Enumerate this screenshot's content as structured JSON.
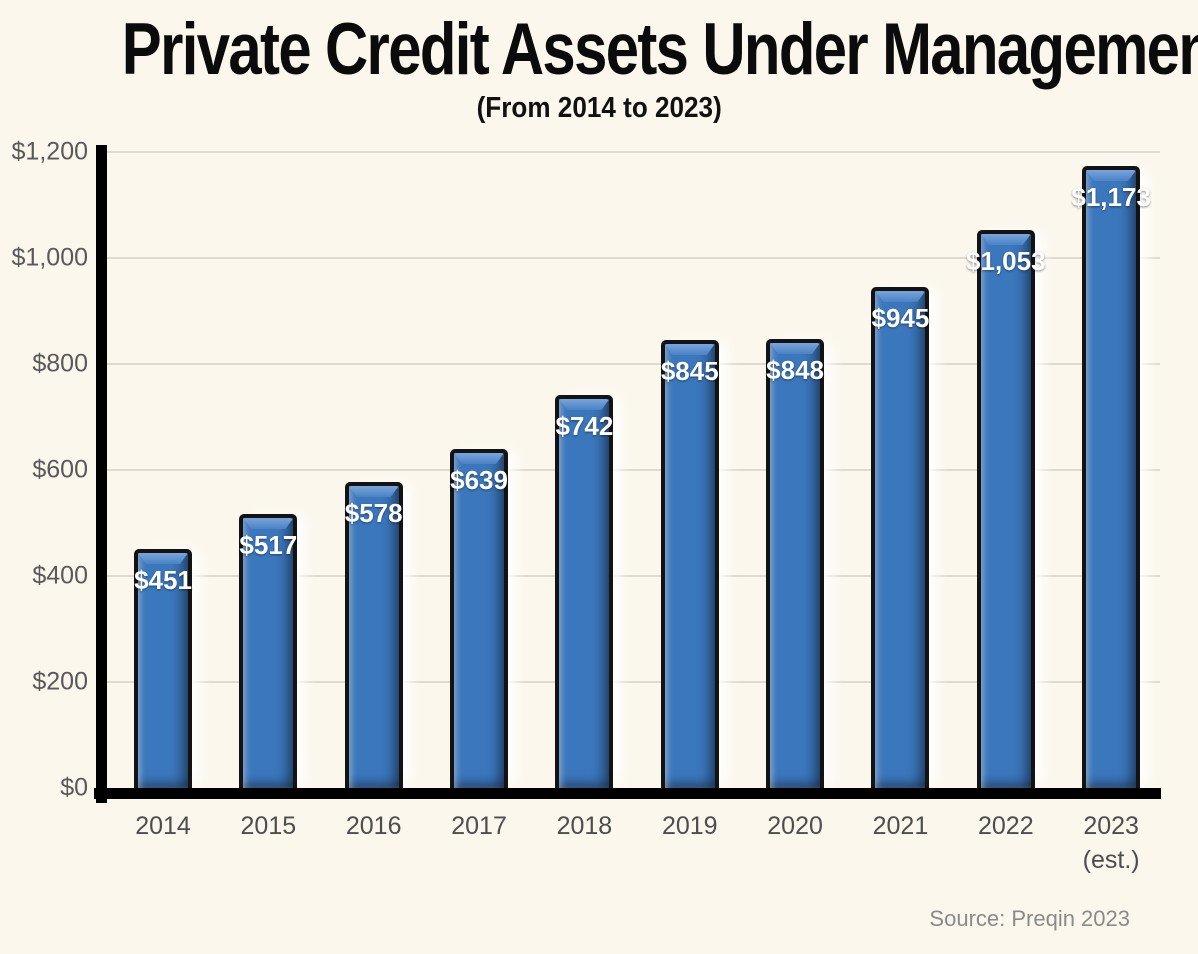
{
  "header": {
    "title": "Private Credit Assets Under Management",
    "subtitle": "(From 2014 to 2023)"
  },
  "footer": {
    "source": "Source: Preqin  2023"
  },
  "chart_data": {
    "type": "bar",
    "title": "Private Credit Assets Under Management",
    "subtitle": "(From 2014 to 2023)",
    "categories": [
      "2014",
      "2015",
      "2016",
      "2017",
      "2018",
      "2019",
      "2020",
      "2021",
      "2022",
      "2023"
    ],
    "category_sub_labels": [
      "",
      "",
      "",
      "",
      "",
      "",
      "",
      "",
      "",
      "(est.)"
    ],
    "values": [
      451,
      517,
      578,
      639,
      742,
      845,
      848,
      945,
      1053,
      1173
    ],
    "value_labels": [
      "$451",
      "$517",
      "$578",
      "$639",
      "$742",
      "$845",
      "$848",
      "$945",
      "$1,053",
      "$1,173"
    ],
    "xlabel": "",
    "ylabel": "",
    "ylim": [
      0,
      1200
    ],
    "ytick_values": [
      0,
      200,
      400,
      600,
      800,
      1000,
      1200
    ],
    "ytick_labels": [
      "$0",
      "$200",
      "$400",
      "$600",
      "$800",
      "$1,000",
      "$1,200"
    ],
    "grid": true,
    "legend_position": "none",
    "source_note": "Source: Preqin  2023",
    "colors": {
      "bar_fill": "#3b77bd",
      "bar_bevel_highlight": "#79a5dc",
      "bar_border": "#131313",
      "background": "#fbf7ed",
      "gridline": "#dedacf",
      "axis": "#000000",
      "tick_text": "#595959",
      "value_label_text": "#ffffff",
      "source_text": "#8a8a8a"
    }
  }
}
